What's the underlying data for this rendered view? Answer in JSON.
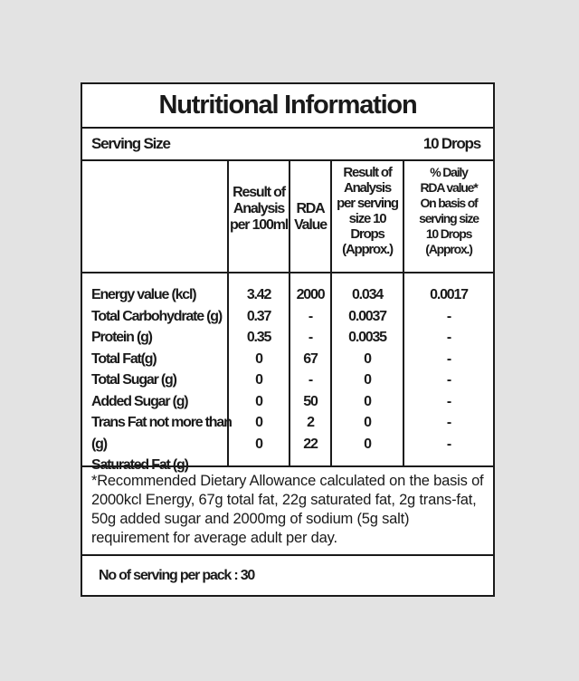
{
  "title": "Nutritional Information",
  "serving_size": {
    "label": "Serving Size",
    "value": "10 Drops"
  },
  "columns": [
    "",
    "Result of\nAnalysis\nper 100ml",
    "RDA\nValue",
    "Result of\nAnalysis\nper serving\nsize 10 Drops\n(Approx.)",
    "% Daily\nRDA value*\nOn basis of\nserving size\n10 Drops (Approx.)"
  ],
  "rows": [
    {
      "nutrient": "Energy value (kcl)",
      "per_100ml": "3.42",
      "rda": "2000",
      "per_serving": "0.034",
      "daily_pct": "0.0017"
    },
    {
      "nutrient": "Total Carbohydrate (g)",
      "per_100ml": "0.37",
      "rda": "-",
      "per_serving": "0.0037",
      "daily_pct": "-"
    },
    {
      "nutrient": "Protein (g)",
      "per_100ml": "0.35",
      "rda": "-",
      "per_serving": "0.0035",
      "daily_pct": "-"
    },
    {
      "nutrient": "Total Fat(g)",
      "per_100ml": "0",
      "rda": "67",
      "per_serving": "0",
      "daily_pct": "-"
    },
    {
      "nutrient": "Total Sugar (g)",
      "per_100ml": "0",
      "rda": "-",
      "per_serving": "0",
      "daily_pct": "-"
    },
    {
      "nutrient": "Added Sugar (g)",
      "per_100ml": "0",
      "rda": "50",
      "per_serving": "0",
      "daily_pct": "-"
    },
    {
      "nutrient": "Trans Fat not more than (g)",
      "per_100ml": "0",
      "rda": "2",
      "per_serving": "0",
      "daily_pct": "-"
    },
    {
      "nutrient": "Saturated Fat (g)",
      "per_100ml": "0",
      "rda": "22",
      "per_serving": "0",
      "daily_pct": "-"
    }
  ],
  "footnote": "*Recommended Dietary Allowance calculated on the basis of 2000kcl Energy, 67g total fat, 22g saturated fat, 2g trans-fat, 50g added sugar and 2000mg of sodium (5g salt) requirement for average adult per day.",
  "servings_per_pack": "No of serving per pack : 30"
}
